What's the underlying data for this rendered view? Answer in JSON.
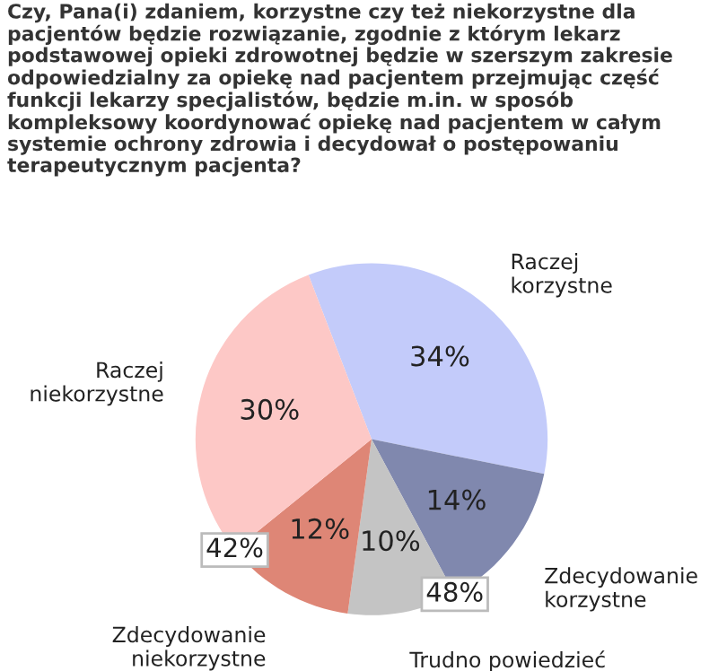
{
  "chart_data": {
    "type": "pie",
    "title": "Czy, Pana(i) zdaniem, korzystne czy też niekorzystne dla\npacjentów będzie rozwiązanie, zgodnie z którym lekarz\npodstawowej opieki zdrowotnej będzie w szerszym zakresie\nodpowiedzialny za opiekę nad pacjentem przejmując część\nfunkcji lekarzy specjalistów, będzie m.in. w sposób\nkompleksowy koordynować opiekę nad pacjentem w całym\nsystemie ochrony zdrowia i decydował o postępowaniu\nterapeutycznym pacjenta?",
    "categories": [
      "Raczej\nkorzystne",
      "Zdecydowanie\nkorzystne",
      "Trudno powiedzieć",
      "Zdecydowanie\nniekorzystne",
      "Raczej\nniekorzystne"
    ],
    "values": [
      34,
      14,
      10,
      12,
      30
    ],
    "colors": [
      "#c3cbfa",
      "#8088ae",
      "#c4c4c4",
      "#de8676",
      "#fdc8c6"
    ],
    "value_labels": [
      "34%",
      "14%",
      "10%",
      "12%",
      "30%"
    ],
    "annotations": [
      "48%",
      "42%"
    ],
    "legend": false
  }
}
